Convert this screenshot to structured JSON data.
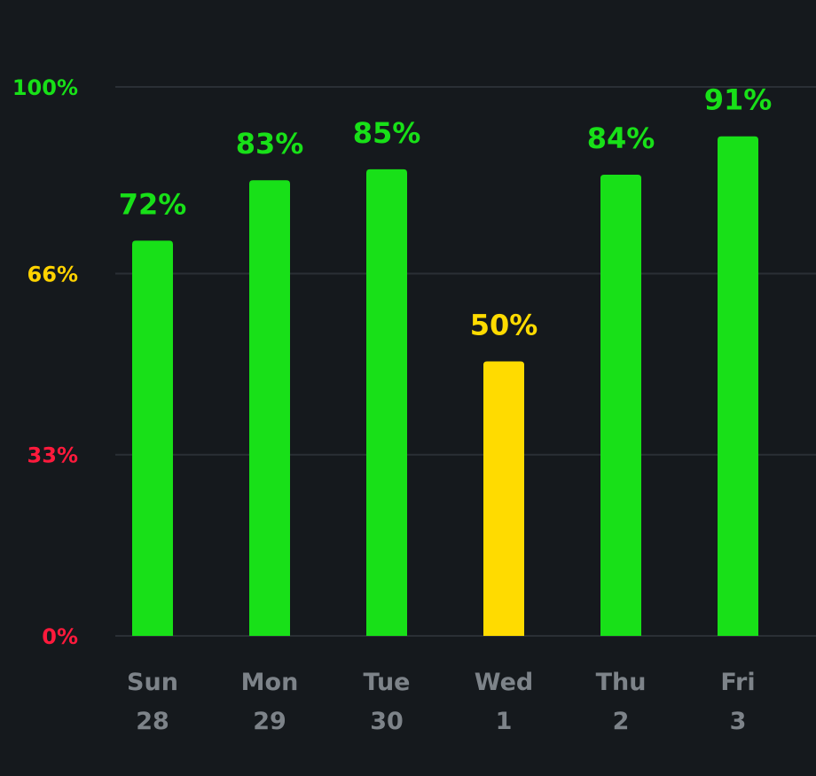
{
  "chart_data": {
    "type": "bar",
    "categories": [
      "Sun",
      "Mon",
      "Tue",
      "Wed",
      "Thu",
      "Fri"
    ],
    "dates": [
      "28",
      "29",
      "30",
      "1",
      "2",
      "3"
    ],
    "values": [
      72,
      83,
      85,
      50,
      84,
      91
    ],
    "value_labels": [
      "72%",
      "83%",
      "85%",
      "50%",
      "84%",
      "91%"
    ],
    "ylim": [
      0,
      100
    ],
    "y_ticks": [
      {
        "value": 0,
        "label": "0%",
        "color": "#ff1a3c"
      },
      {
        "value": 33,
        "label": "33%",
        "color": "#ff1a3c"
      },
      {
        "value": 66,
        "label": "66%",
        "color": "#ffd200"
      },
      {
        "value": 100,
        "label": "100%",
        "color": "#18e018"
      }
    ],
    "grid": true,
    "threshold": 66,
    "colors": {
      "above_threshold": "#18e018",
      "below_threshold": "#ffdb00",
      "background": "#15191d",
      "gridline": "#2a2f35",
      "axis_text": "#7d8389"
    }
  }
}
